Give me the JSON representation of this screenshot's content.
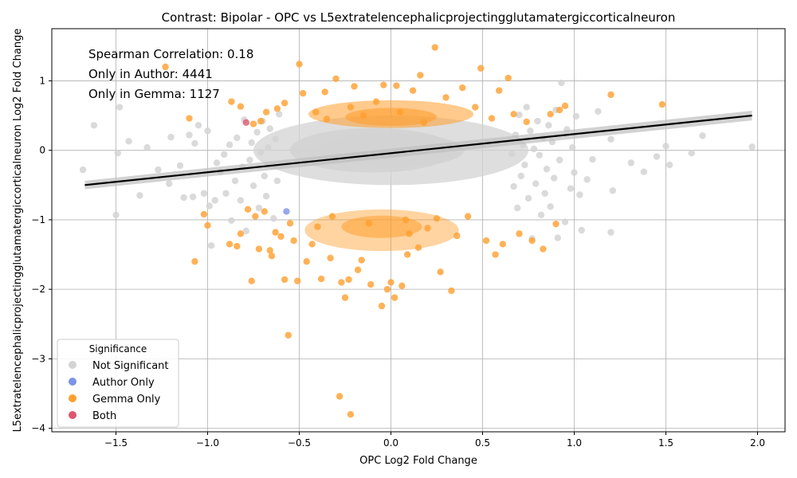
{
  "chart_data": {
    "type": "scatter",
    "title": "Contrast: Bipolar - OPC vs L5extratelencephalicprojectingglutamatergiccorticalneuron",
    "xlabel": "OPC Log2 Fold Change",
    "ylabel": "L5extratelencephalicprojectingglutamatergiccorticalneuron Log2 Fold Change",
    "xlim": [
      -1.85,
      2.15
    ],
    "ylim": [
      -4.05,
      1.75
    ],
    "x_ticks": [
      -1.5,
      -1.0,
      -0.5,
      0.0,
      0.5,
      1.0,
      1.5,
      2.0
    ],
    "x_tick_labels": [
      "−1.5",
      "−1.0",
      "−0.5",
      "0.0",
      "0.5",
      "1.0",
      "1.5",
      "2.0"
    ],
    "y_ticks": [
      -4,
      -3,
      -2,
      -1,
      0,
      1
    ],
    "y_tick_labels": [
      "−4",
      "−3",
      "−2",
      "−1",
      "0",
      "1"
    ],
    "grid": true,
    "annotations": [
      "Spearman Correlation: 0.18",
      "Only in Author: 4441",
      "Only in Gemma: 1127"
    ],
    "legend": {
      "title": "Significance",
      "placement": "lower-left",
      "entries": [
        {
          "label": "Not Significant",
          "color": "#d3d3d3"
        },
        {
          "label": "Author Only",
          "color": "#7b93e8"
        },
        {
          "label": "Gemma Only",
          "color": "#ff9f2e"
        },
        {
          "label": "Both",
          "color": "#e0566e"
        }
      ]
    },
    "regression_line": {
      "x": [
        -1.67,
        1.97
      ],
      "y": [
        -0.5,
        0.5
      ],
      "color": "#000000"
    },
    "series": [
      {
        "name": "Not Significant",
        "color": "#d3d3d3",
        "points": [
          [
            -1.68,
            -0.28
          ],
          [
            -1.5,
            -0.93
          ],
          [
            -1.49,
            -0.04
          ],
          [
            -1.43,
            0.13
          ],
          [
            -1.37,
            -0.65
          ],
          [
            -1.33,
            0.04
          ],
          [
            -1.27,
            -0.28
          ],
          [
            -1.21,
            -0.48
          ],
          [
            -1.2,
            0.19
          ],
          [
            -1.15,
            -0.22
          ],
          [
            -1.13,
            -0.68
          ],
          [
            -1.1,
            0.22
          ],
          [
            -1.08,
            -0.67
          ],
          [
            -1.07,
            0.1
          ],
          [
            -1.05,
            0.36
          ],
          [
            -1.02,
            -0.62
          ],
          [
            -1.0,
            0.28
          ],
          [
            -0.99,
            -0.8
          ],
          [
            -0.98,
            -1.37
          ],
          [
            -0.96,
            -0.72
          ],
          [
            -0.95,
            -0.18
          ],
          [
            -0.93,
            -0.31
          ],
          [
            -0.91,
            -0.06
          ],
          [
            -0.9,
            -0.62
          ],
          [
            -0.88,
            0.08
          ],
          [
            -0.87,
            -1.01
          ],
          [
            -0.85,
            -0.44
          ],
          [
            -0.84,
            0.18
          ],
          [
            -0.82,
            -0.72
          ],
          [
            -0.81,
            -0.24
          ],
          [
            -0.8,
            0.44
          ],
          [
            -0.79,
            -1.16
          ],
          [
            -0.77,
            -0.14
          ],
          [
            -0.76,
            0.11
          ],
          [
            -0.75,
            -0.51
          ],
          [
            -0.73,
            0.26
          ],
          [
            -0.72,
            -0.83
          ],
          [
            -0.71,
            -0.03
          ],
          [
            -0.7,
            0.42
          ],
          [
            -0.69,
            -0.37
          ],
          [
            -1.62,
            0.36
          ],
          [
            -1.48,
            0.62
          ],
          [
            -0.68,
            -0.66
          ],
          [
            -0.67,
            0.04
          ],
          [
            -0.66,
            0.31
          ],
          [
            -0.65,
            -0.22
          ],
          [
            -0.64,
            -0.98
          ],
          [
            -0.63,
            0.16
          ],
          [
            -0.62,
            -0.44
          ],
          [
            -0.61,
            0.52
          ],
          [
            1.97,
            0.05
          ],
          [
            1.7,
            0.21
          ],
          [
            1.64,
            -0.04
          ],
          [
            1.52,
            -0.21
          ],
          [
            1.5,
            0.06
          ],
          [
            1.45,
            -0.09
          ],
          [
            1.38,
            -0.31
          ],
          [
            1.31,
            -0.18
          ],
          [
            1.21,
            -0.58
          ],
          [
            1.2,
            -1.18
          ],
          [
            1.2,
            0.16
          ],
          [
            1.13,
            0.56
          ],
          [
            1.1,
            -0.13
          ],
          [
            1.07,
            -0.42
          ],
          [
            1.04,
            -1.15
          ],
          [
            1.03,
            -0.64
          ],
          [
            1.01,
            0.49
          ],
          [
            1.0,
            -0.32
          ],
          [
            0.99,
            0.04
          ],
          [
            0.98,
            -0.55
          ],
          [
            0.96,
            0.3
          ],
          [
            0.95,
            -1.03
          ],
          [
            0.93,
            0.97
          ],
          [
            0.92,
            -0.14
          ],
          [
            0.91,
            -1.26
          ],
          [
            0.9,
            0.58
          ],
          [
            0.89,
            -0.4
          ],
          [
            0.88,
            0.12
          ],
          [
            0.87,
            -0.81
          ],
          [
            0.86,
            0.36
          ],
          [
            0.85,
            -0.27
          ],
          [
            0.84,
            -0.62
          ],
          [
            0.83,
            0.18
          ],
          [
            0.82,
            -0.93
          ],
          [
            0.81,
            -0.07
          ],
          [
            0.8,
            0.42
          ],
          [
            0.79,
            -0.48
          ],
          [
            0.78,
            0.02
          ],
          [
            0.77,
            -1.27
          ],
          [
            0.76,
            0.28
          ],
          [
            0.75,
            -0.69
          ],
          [
            0.74,
            0.62
          ],
          [
            0.73,
            -0.21
          ],
          [
            0.72,
            0.08
          ],
          [
            0.71,
            -0.37
          ],
          [
            0.7,
            0.51
          ],
          [
            0.69,
            -0.83
          ],
          [
            0.68,
            0.22
          ],
          [
            0.67,
            -0.52
          ],
          [
            0.66,
            -0.05
          ]
        ]
      },
      {
        "name": "Author Only",
        "color": "#7b93e8",
        "points": [
          [
            -0.57,
            -0.88
          ]
        ]
      },
      {
        "name": "Gemma Only",
        "color": "#ff9f2e",
        "points": [
          [
            -1.23,
            1.2
          ],
          [
            -1.1,
            0.46
          ],
          [
            -1.07,
            -1.6
          ],
          [
            -1.02,
            -0.92
          ],
          [
            -1.0,
            -1.08
          ],
          [
            -0.88,
            -1.35
          ],
          [
            -0.87,
            0.7
          ],
          [
            -0.84,
            -1.38
          ],
          [
            -0.82,
            0.63
          ],
          [
            -0.82,
            -1.2
          ],
          [
            -0.78,
            -0.85
          ],
          [
            -0.76,
            -1.88
          ],
          [
            -0.75,
            0.38
          ],
          [
            -0.74,
            -0.95
          ],
          [
            -0.72,
            -1.42
          ],
          [
            -0.71,
            0.42
          ],
          [
            -0.69,
            -0.88
          ],
          [
            -0.68,
            0.55
          ],
          [
            -0.66,
            -1.44
          ],
          [
            -0.65,
            -1.52
          ],
          [
            -0.63,
            -1.18
          ],
          [
            -0.62,
            0.6
          ],
          [
            -0.6,
            -1.24
          ],
          [
            -0.58,
            0.68
          ],
          [
            -0.58,
            -1.86
          ],
          [
            -0.56,
            -2.66
          ],
          [
            -0.55,
            -1.05
          ],
          [
            -0.53,
            -1.3
          ],
          [
            -0.51,
            -1.88
          ],
          [
            -0.5,
            1.24
          ],
          [
            -0.48,
            0.82
          ],
          [
            -0.46,
            -1.6
          ],
          [
            -0.43,
            -1.35
          ],
          [
            -0.41,
            0.55
          ],
          [
            -0.4,
            -1.1
          ],
          [
            -0.38,
            -1.85
          ],
          [
            -0.36,
            0.84
          ],
          [
            -0.33,
            -1.55
          ],
          [
            -0.3,
            1.03
          ],
          [
            -0.28,
            -3.54
          ],
          [
            -0.27,
            -1.9
          ],
          [
            -0.25,
            -2.12
          ],
          [
            -0.23,
            -1.86
          ],
          [
            -0.22,
            -3.8
          ],
          [
            -0.2,
            0.92
          ],
          [
            -0.18,
            -1.72
          ],
          [
            -0.16,
            -1.58
          ],
          [
            -0.11,
            -1.93
          ],
          [
            -0.08,
            0.7
          ],
          [
            -0.05,
            -2.24
          ],
          [
            -0.04,
            0.94
          ],
          [
            -0.02,
            -2.0
          ],
          [
            0.0,
            -1.9
          ],
          [
            0.02,
            -2.12
          ],
          [
            0.03,
            0.93
          ],
          [
            0.06,
            -1.95
          ],
          [
            0.09,
            -1.5
          ],
          [
            0.12,
            0.86
          ],
          [
            0.15,
            -1.4
          ],
          [
            0.16,
            1.08
          ],
          [
            0.2,
            -1.12
          ],
          [
            0.24,
            1.48
          ],
          [
            0.27,
            -1.75
          ],
          [
            0.3,
            0.76
          ],
          [
            0.33,
            -2.02
          ],
          [
            0.36,
            -1.23
          ],
          [
            0.39,
            0.9
          ],
          [
            0.42,
            -0.95
          ],
          [
            0.46,
            0.62
          ],
          [
            0.49,
            1.18
          ],
          [
            0.52,
            -1.3
          ],
          [
            0.55,
            0.46
          ],
          [
            0.57,
            -1.5
          ],
          [
            0.59,
            0.86
          ],
          [
            0.61,
            -1.35
          ],
          [
            0.64,
            1.04
          ],
          [
            0.67,
            0.52
          ],
          [
            0.7,
            -1.2
          ],
          [
            0.74,
            0.41
          ],
          [
            0.77,
            -1.3
          ],
          [
            0.83,
            -1.42
          ],
          [
            0.87,
            0.52
          ],
          [
            0.9,
            -1.06
          ],
          [
            0.92,
            0.58
          ],
          [
            0.95,
            0.64
          ],
          [
            1.2,
            0.8
          ],
          [
            1.48,
            0.66
          ],
          [
            -0.35,
            0.45
          ],
          [
            -0.15,
            0.5
          ],
          [
            0.05,
            0.55
          ],
          [
            0.18,
            0.4
          ],
          [
            -0.32,
            -0.95
          ],
          [
            -0.12,
            -1.05
          ],
          [
            0.08,
            -1.0
          ],
          [
            0.25,
            -0.98
          ],
          [
            -0.22,
            0.62
          ],
          [
            0.1,
            -1.2
          ]
        ]
      },
      {
        "name": "Both",
        "color": "#e0566e",
        "points": [
          [
            -0.79,
            0.4
          ]
        ]
      }
    ]
  }
}
